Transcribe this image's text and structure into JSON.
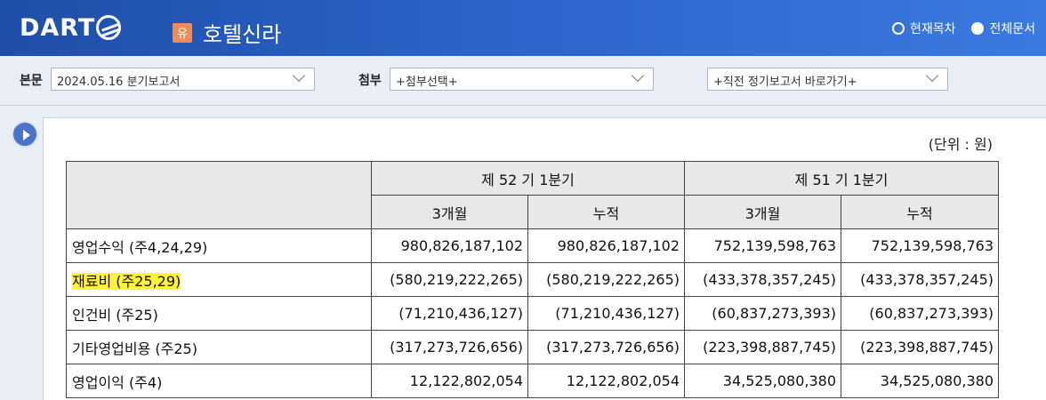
{
  "header": {
    "logo_text": "DART",
    "company_badge": "유",
    "company_name": "호텔신라",
    "radio_current": "현재목차",
    "radio_all": "전체문서"
  },
  "toolbar": {
    "main_label": "본문",
    "main_select": "2024.05.16  분기보고서",
    "attach_label": "첨부",
    "attach_select": "+첨부선택+",
    "prev_select": "+직전 정기보고서 바로가기+"
  },
  "report": {
    "unit": "(단위 : 원)",
    "headers": {
      "period1": "제 52 기 1분기",
      "period2": "제 51 기 1분기",
      "sub": [
        "3개월",
        "누적",
        "3개월",
        "누적"
      ]
    },
    "rows": [
      {
        "label": "영업수익 (주4,24,29)",
        "values": [
          "980,826,187,102",
          "980,826,187,102",
          "752,139,598,763",
          "752,139,598,763"
        ],
        "highlighted": false
      },
      {
        "label": "재료비 (주25,29)",
        "values": [
          "(580,219,222,265)",
          "(580,219,222,265)",
          "(433,378,357,245)",
          "(433,378,357,245)"
        ],
        "highlighted": true
      },
      {
        "label": "인건비 (주25)",
        "values": [
          "(71,210,436,127)",
          "(71,210,436,127)",
          "(60,837,273,393)",
          "(60,837,273,393)"
        ],
        "highlighted": false
      },
      {
        "label": "기타영업비용 (주25)",
        "values": [
          "(317,273,726,656)",
          "(317,273,726,656)",
          "(223,398,887,745)",
          "(223,398,887,745)"
        ],
        "highlighted": false
      },
      {
        "label": "영업이익 (주4)",
        "values": [
          "12,122,802,054",
          "12,122,802,054",
          "34,525,080,380",
          "34,525,080,380"
        ],
        "highlighted": false
      }
    ]
  },
  "colors": {
    "header_bg": "#2b63c9",
    "highlight": "#fff23a",
    "badge": "#f08a5a"
  }
}
